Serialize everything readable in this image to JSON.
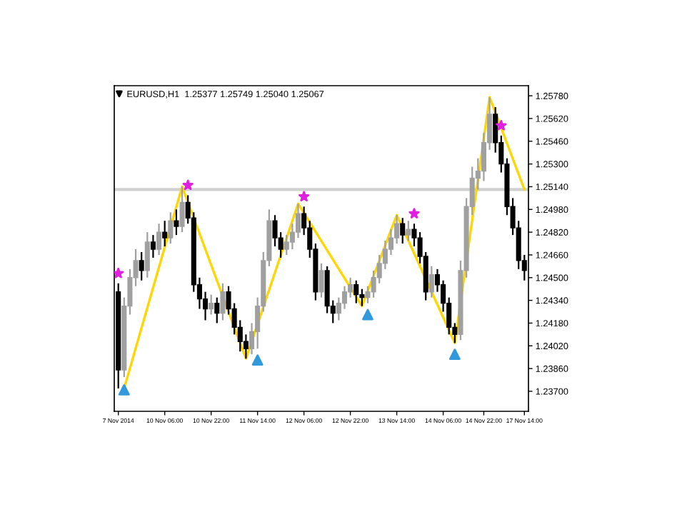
{
  "chart_data": {
    "type": "candlestick",
    "title": "EURUSD,H1  1.25377 1.25749 1.25040 1.25067",
    "categories": [
      "7 Nov 2014",
      null,
      null,
      null,
      null,
      null,
      null,
      null,
      "10 Nov 06:00",
      null,
      null,
      null,
      null,
      null,
      null,
      null,
      "10 Nov 22:00",
      null,
      null,
      null,
      null,
      null,
      null,
      null,
      "11 Nov 14:00",
      null,
      null,
      null,
      null,
      null,
      null,
      null,
      "12 Nov 06:00",
      null,
      null,
      null,
      null,
      null,
      null,
      null,
      "12 Nov 22:00",
      null,
      null,
      null,
      null,
      null,
      null,
      null,
      "13 Nov 14:00",
      null,
      null,
      null,
      null,
      null,
      null,
      null,
      "14 Nov 06:00",
      null,
      null,
      null,
      null,
      null,
      null,
      "14 Nov 22:00",
      null,
      null,
      null,
      null,
      null,
      null,
      "17 Nov 14:00"
    ],
    "ohlc": [
      [
        1.244,
        1.2446,
        1.2372,
        1.2385
      ],
      [
        1.2385,
        1.2436,
        1.238,
        1.243
      ],
      [
        1.243,
        1.2456,
        1.2424,
        1.245
      ],
      [
        1.245,
        1.247,
        1.2444,
        1.2462
      ],
      [
        1.2462,
        1.2468,
        1.2448,
        1.2455
      ],
      [
        1.2455,
        1.2482,
        1.245,
        1.2475
      ],
      [
        1.2475,
        1.248,
        1.2464,
        1.247
      ],
      [
        1.247,
        1.2488,
        1.2466,
        1.2482
      ],
      [
        1.2482,
        1.249,
        1.2472,
        1.2478
      ],
      [
        1.2478,
        1.2496,
        1.2474,
        1.249
      ],
      [
        1.249,
        1.2498,
        1.248,
        1.2486
      ],
      [
        1.2486,
        1.2514,
        1.2482,
        1.2503
      ],
      [
        1.2503,
        1.2508,
        1.2488,
        1.2492
      ],
      [
        1.2492,
        1.2496,
        1.244,
        1.2445
      ],
      [
        1.2445,
        1.245,
        1.2428,
        1.2435
      ],
      [
        1.2435,
        1.244,
        1.242,
        1.2428
      ],
      [
        1.2428,
        1.2438,
        1.2424,
        1.2432
      ],
      [
        1.2432,
        1.2436,
        1.2418,
        1.2425
      ],
      [
        1.2425,
        1.2446,
        1.242,
        1.244
      ],
      [
        1.244,
        1.2444,
        1.2424,
        1.2428
      ],
      [
        1.2428,
        1.2432,
        1.241,
        1.2415
      ],
      [
        1.2415,
        1.242,
        1.2398,
        1.2405
      ],
      [
        1.2405,
        1.241,
        1.2393,
        1.24
      ],
      [
        1.24,
        1.2418,
        1.2396,
        1.2412
      ],
      [
        1.2412,
        1.2436,
        1.24,
        1.243
      ],
      [
        1.243,
        1.2468,
        1.2426,
        1.2462
      ],
      [
        1.2462,
        1.2498,
        1.2458,
        1.249
      ],
      [
        1.249,
        1.2494,
        1.2472,
        1.2478
      ],
      [
        1.2478,
        1.2482,
        1.2464,
        1.247
      ],
      [
        1.247,
        1.248,
        1.2466,
        1.2475
      ],
      [
        1.2475,
        1.2488,
        1.247,
        1.2482
      ],
      [
        1.2482,
        1.2502,
        1.2478,
        1.2495
      ],
      [
        1.2495,
        1.25,
        1.248,
        1.2485
      ],
      [
        1.2485,
        1.249,
        1.2464,
        1.247
      ],
      [
        1.247,
        1.2474,
        1.2434,
        1.244
      ],
      [
        1.244,
        1.246,
        1.2436,
        1.2455
      ],
      [
        1.2455,
        1.2458,
        1.2425,
        1.243
      ],
      [
        1.243,
        1.2434,
        1.2418,
        1.2425
      ],
      [
        1.2425,
        1.2436,
        1.242,
        1.2432
      ],
      [
        1.2432,
        1.2444,
        1.2428,
        1.244
      ],
      [
        1.244,
        1.245,
        1.2436,
        1.2445
      ],
      [
        1.2445,
        1.2448,
        1.2432,
        1.2438
      ],
      [
        1.2438,
        1.2442,
        1.243,
        1.2436
      ],
      [
        1.2436,
        1.2444,
        1.2432,
        1.244
      ],
      [
        1.244,
        1.2455,
        1.2436,
        1.245
      ],
      [
        1.245,
        1.2466,
        1.2446,
        1.246
      ],
      [
        1.246,
        1.2476,
        1.2456,
        1.247
      ],
      [
        1.247,
        1.2484,
        1.2466,
        1.2478
      ],
      [
        1.2478,
        1.2494,
        1.2474,
        1.2488
      ],
      [
        1.2488,
        1.2492,
        1.2474,
        1.248
      ],
      [
        1.248,
        1.249,
        1.2476,
        1.2484
      ],
      [
        1.2484,
        1.2488,
        1.2472,
        1.2478
      ],
      [
        1.2478,
        1.2482,
        1.246,
        1.2465
      ],
      [
        1.2465,
        1.2468,
        1.2434,
        1.244
      ],
      [
        1.244,
        1.2458,
        1.2436,
        1.2452
      ],
      [
        1.2452,
        1.2456,
        1.244,
        1.2445
      ],
      [
        1.2445,
        1.2448,
        1.2426,
        1.2432
      ],
      [
        1.2432,
        1.2436,
        1.241,
        1.2415
      ],
      [
        1.2415,
        1.2418,
        1.2404,
        1.241
      ],
      [
        1.241,
        1.2462,
        1.2406,
        1.2455
      ],
      [
        1.2455,
        1.2506,
        1.245,
        1.25
      ],
      [
        1.25,
        1.2528,
        1.2494,
        1.252
      ],
      [
        1.252,
        1.2534,
        1.2512,
        1.2525
      ],
      [
        1.2525,
        1.2552,
        1.2518,
        1.2545
      ],
      [
        1.2545,
        1.2577,
        1.254,
        1.2565
      ],
      [
        1.2565,
        1.257,
        1.2538,
        1.2545
      ],
      [
        1.2545,
        1.255,
        1.2524,
        1.253
      ],
      [
        1.253,
        1.2534,
        1.2494,
        1.25
      ],
      [
        1.25,
        1.2506,
        1.248,
        1.2485
      ],
      [
        1.2485,
        1.249,
        1.2456,
        1.2462
      ],
      [
        1.2462,
        1.2466,
        1.2448,
        1.2455
      ]
    ],
    "colors": [
      "#000000",
      "#a0a0a0",
      "#a0a0a0",
      "#a0a0a0",
      "#000000",
      "#a0a0a0",
      "#000000",
      "#a0a0a0",
      "#000000",
      "#a0a0a0",
      "#000000",
      "#a0a0a0",
      "#000000",
      "#000000",
      "#000000",
      "#000000",
      "#a0a0a0",
      "#000000",
      "#a0a0a0",
      "#000000",
      "#000000",
      "#000000",
      "#000000",
      "#a0a0a0",
      "#a0a0a0",
      "#a0a0a0",
      "#a0a0a0",
      "#000000",
      "#000000",
      "#a0a0a0",
      "#a0a0a0",
      "#a0a0a0",
      "#000000",
      "#000000",
      "#000000",
      "#a0a0a0",
      "#000000",
      "#000000",
      "#a0a0a0",
      "#a0a0a0",
      "#a0a0a0",
      "#000000",
      "#000000",
      "#a0a0a0",
      "#a0a0a0",
      "#a0a0a0",
      "#a0a0a0",
      "#a0a0a0",
      "#a0a0a0",
      "#000000",
      "#a0a0a0",
      "#000000",
      "#000000",
      "#000000",
      "#a0a0a0",
      "#000000",
      "#000000",
      "#000000",
      "#000000",
      "#a0a0a0",
      "#a0a0a0",
      "#a0a0a0",
      "#a0a0a0",
      "#a0a0a0",
      "#a0a0a0",
      "#000000",
      "#000000",
      "#000000",
      "#000000",
      "#000000",
      "#000000"
    ],
    "series": [
      {
        "type": "line",
        "color": "#ffd700",
        "values": [
          null,
          1.2372,
          null,
          null,
          null,
          null,
          null,
          null,
          null,
          null,
          null,
          1.2514,
          null,
          null,
          null,
          null,
          null,
          null,
          null,
          null,
          null,
          null,
          1.2393,
          null,
          null,
          null,
          null,
          null,
          null,
          null,
          null,
          1.2502,
          null,
          null,
          null,
          null,
          null,
          null,
          null,
          null,
          null,
          null,
          1.243,
          null,
          null,
          null,
          null,
          null,
          1.2494,
          null,
          null,
          null,
          null,
          null,
          null,
          null,
          null,
          null,
          1.2404,
          null,
          null,
          null,
          null,
          null,
          1.2577,
          null,
          null,
          null,
          null,
          null,
          1.2512
        ]
      },
      {
        "type": "scatter",
        "color": "#e020e0",
        "marker": "star",
        "values": [
          1.2453,
          null,
          null,
          null,
          null,
          null,
          null,
          null,
          null,
          null,
          null,
          null,
          1.2515,
          null,
          null,
          null,
          null,
          null,
          null,
          null,
          null,
          null,
          null,
          null,
          null,
          null,
          null,
          null,
          null,
          null,
          null,
          null,
          1.2507,
          null,
          null,
          null,
          null,
          null,
          null,
          null,
          null,
          null,
          null,
          null,
          null,
          null,
          null,
          null,
          null,
          null,
          null,
          1.2495,
          null,
          null,
          null,
          null,
          null,
          null,
          null,
          null,
          null,
          null,
          null,
          null,
          null,
          null,
          1.2557,
          null,
          null,
          null,
          null
        ]
      },
      {
        "type": "scatter",
        "color": "#3399dd",
        "marker": "triangle",
        "values": [
          null,
          1.2371,
          null,
          null,
          null,
          null,
          null,
          null,
          null,
          null,
          null,
          null,
          null,
          null,
          null,
          null,
          null,
          null,
          null,
          null,
          null,
          null,
          null,
          null,
          1.2392,
          null,
          null,
          null,
          null,
          null,
          null,
          null,
          null,
          null,
          null,
          null,
          null,
          null,
          null,
          null,
          null,
          null,
          null,
          1.2424,
          null,
          null,
          null,
          null,
          null,
          null,
          null,
          null,
          null,
          null,
          null,
          null,
          null,
          null,
          1.2396,
          null,
          null,
          null,
          null,
          null,
          null,
          null,
          null,
          null,
          null,
          null,
          null
        ]
      }
    ],
    "ref_lines": [
      {
        "axis": "y",
        "value": 1.2512,
        "color": "#d0d0d0"
      }
    ],
    "ylim": [
      1.23559,
      1.25851
    ],
    "yticks": [
      {
        "value": 1.237,
        "label": "1.23700"
      },
      {
        "value": 1.2386,
        "label": "1.23860"
      },
      {
        "value": 1.2402,
        "label": "1.24020"
      },
      {
        "value": 1.2418,
        "label": "1.24180"
      },
      {
        "value": 1.2434,
        "label": "1.24340"
      },
      {
        "value": 1.245,
        "label": "1.24500"
      },
      {
        "value": 1.2466,
        "label": "1.24660"
      },
      {
        "value": 1.2482,
        "label": "1.24820"
      },
      {
        "value": 1.2498,
        "label": "1.24980"
      },
      {
        "value": 1.2514,
        "label": "1.25140"
      },
      {
        "value": 1.253,
        "label": "1.25300"
      },
      {
        "value": 1.2546,
        "label": "1.25460"
      },
      {
        "value": 1.2562,
        "label": "1.25620"
      },
      {
        "value": 1.2578,
        "label": "1.25780"
      }
    ],
    "grid": false
  }
}
